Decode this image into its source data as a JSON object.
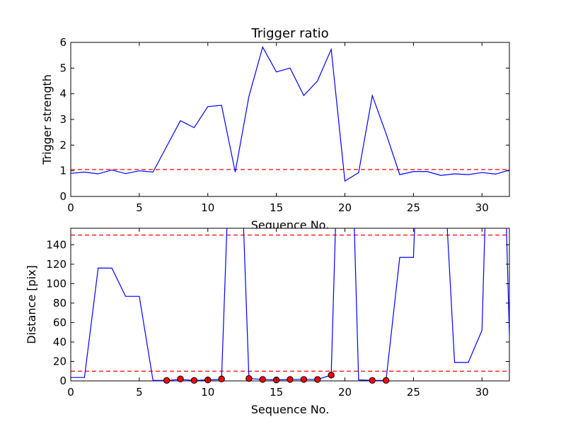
{
  "chart_data": [
    {
      "type": "line",
      "title": "Trigger ratio",
      "xlabel": "Sequence No.",
      "ylabel": "Trigger strength",
      "xlim": [
        0,
        32
      ],
      "ylim": [
        0,
        6
      ],
      "xticks": [
        0,
        5,
        10,
        15,
        20,
        25,
        30
      ],
      "yticks": [
        0,
        1,
        2,
        3,
        4,
        5,
        6
      ],
      "series": [
        {
          "color": "#0000ff",
          "x": [
            0,
            1,
            2,
            3,
            4,
            5,
            6,
            7,
            8,
            9,
            10,
            11,
            12,
            13,
            14,
            15,
            16,
            17,
            18,
            19,
            20,
            21,
            22,
            23,
            24,
            25,
            26,
            27,
            28,
            29,
            30,
            31,
            32
          ],
          "y": [
            0.9,
            0.95,
            0.88,
            1.03,
            0.89,
            1.0,
            0.95,
            1.95,
            2.95,
            2.68,
            3.5,
            3.55,
            0.95,
            3.9,
            5.82,
            4.85,
            5.0,
            3.93,
            4.5,
            5.73,
            0.6,
            0.93,
            3.93,
            2.45,
            0.85,
            0.97,
            0.97,
            0.82,
            0.88,
            0.85,
            0.93,
            0.87,
            1.03
          ]
        }
      ],
      "thresholds": [
        {
          "y": 1.05,
          "color": "#ff0000",
          "style": "dashed"
        }
      ]
    },
    {
      "type": "line",
      "title": "",
      "xlabel": "Sequence No.",
      "ylabel": "Distance [pix]",
      "xlim": [
        0,
        32
      ],
      "ylim": [
        0,
        157
      ],
      "xticks": [
        0,
        5,
        10,
        15,
        20,
        25,
        30
      ],
      "yticks": [
        0,
        20,
        40,
        60,
        80,
        100,
        120,
        140
      ],
      "series": [
        {
          "color": "#0000ff",
          "x": [
            0,
            1,
            2,
            3,
            4,
            5,
            6,
            7,
            8,
            9,
            10,
            11,
            11.5,
            12.5,
            13,
            14,
            15,
            16,
            17,
            18,
            19,
            19.4,
            20.6,
            21,
            22,
            23,
            24,
            25,
            25.2,
            27.3,
            28,
            29,
            30,
            30.3,
            31.7,
            32
          ],
          "y": [
            3.5,
            3.5,
            116,
            116,
            87,
            87,
            0.5,
            0.5,
            1.5,
            0.5,
            1,
            1.5,
            200,
            200,
            2.5,
            1.5,
            1,
            1.5,
            1.5,
            1.5,
            6,
            200,
            200,
            1,
            0.5,
            0.5,
            127,
            127,
            200,
            200,
            19,
            19,
            52,
            200,
            200,
            47
          ]
        }
      ],
      "markers": {
        "color": "#ff0000",
        "x": [
          7,
          8,
          9,
          10,
          11,
          13,
          14,
          15,
          16,
          17,
          18,
          19,
          22,
          23
        ],
        "y": [
          0.5,
          2,
          0.5,
          1,
          2,
          2.5,
          1.5,
          1,
          1.5,
          1.5,
          1.5,
          6,
          0.5,
          0.5
        ]
      },
      "thresholds": [
        {
          "y": 150,
          "color": "#ff0000",
          "style": "dashed"
        },
        {
          "y": 10,
          "color": "#ff0000",
          "style": "dashed"
        }
      ]
    }
  ]
}
